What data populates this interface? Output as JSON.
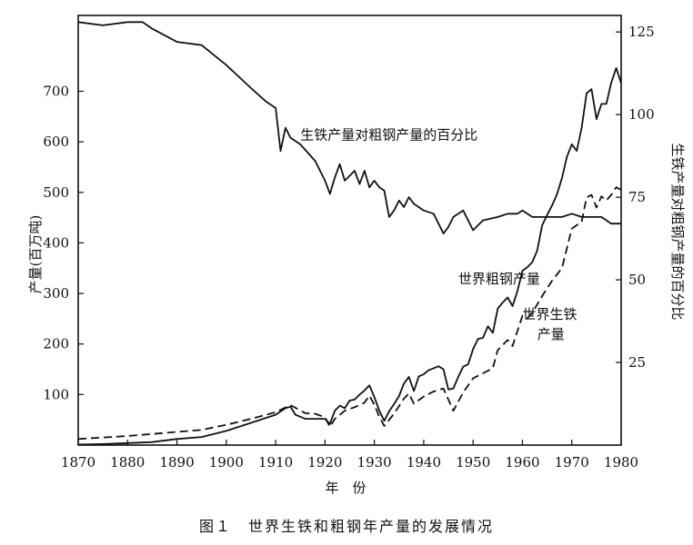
{
  "caption": "图１　世界生铁和粗钢年产量的发展情况",
  "chart_data": {
    "type": "line",
    "title": "图１　世界生铁和粗钢年产量的发展情况",
    "xlabel": "年　份",
    "ylabel_left": "产量(百万吨)",
    "ylabel_right": "生铁产量对粗钢产量的百分比",
    "xlim": [
      1870,
      1980
    ],
    "ylim_left": [
      0,
      850
    ],
    "ylim_right": [
      0,
      130
    ],
    "x_ticks": [
      "1870",
      "1880",
      "1890",
      "1900",
      "1910",
      "1920",
      "1930",
      "1940",
      "1950",
      "1960",
      "1970",
      "1980"
    ],
    "y_left_ticks": [
      "100",
      "200",
      "300",
      "400",
      "500",
      "600",
      "700"
    ],
    "y_right_ticks": [
      "25",
      "50",
      "75",
      "100",
      "125"
    ],
    "grid": false,
    "series": [
      {
        "name": "世界粗钢产量",
        "axis": "left",
        "style": "solid",
        "points": [
          [
            1870,
            1
          ],
          [
            1875,
            2
          ],
          [
            1880,
            4
          ],
          [
            1885,
            6
          ],
          [
            1890,
            12
          ],
          [
            1895,
            16
          ],
          [
            1900,
            28
          ],
          [
            1905,
            44
          ],
          [
            1910,
            60
          ],
          [
            1912,
            73
          ],
          [
            1913,
            76
          ],
          [
            1914,
            60
          ],
          [
            1916,
            52
          ],
          [
            1918,
            52
          ],
          [
            1920,
            52
          ],
          [
            1921,
            42
          ],
          [
            1922,
            68
          ],
          [
            1923,
            78
          ],
          [
            1924,
            73
          ],
          [
            1925,
            88
          ],
          [
            1926,
            90
          ],
          [
            1927,
            100
          ],
          [
            1928,
            108
          ],
          [
            1929,
            118
          ],
          [
            1930,
            95
          ],
          [
            1931,
            68
          ],
          [
            1932,
            48
          ],
          [
            1933,
            67
          ],
          [
            1934,
            81
          ],
          [
            1935,
            97
          ],
          [
            1936,
            122
          ],
          [
            1937,
            135
          ],
          [
            1938,
            107
          ],
          [
            1939,
            136
          ],
          [
            1940,
            140
          ],
          [
            1941,
            148
          ],
          [
            1942,
            152
          ],
          [
            1943,
            156
          ],
          [
            1944,
            150
          ],
          [
            1945,
            110
          ],
          [
            1946,
            112
          ],
          [
            1947,
            135
          ],
          [
            1948,
            155
          ],
          [
            1949,
            160
          ],
          [
            1950,
            190
          ],
          [
            1951,
            210
          ],
          [
            1952,
            212
          ],
          [
            1953,
            235
          ],
          [
            1954,
            222
          ],
          [
            1955,
            270
          ],
          [
            1956,
            282
          ],
          [
            1957,
            292
          ],
          [
            1958,
            275
          ],
          [
            1959,
            305
          ],
          [
            1960,
            345
          ],
          [
            1961,
            352
          ],
          [
            1962,
            362
          ],
          [
            1963,
            385
          ],
          [
            1964,
            435
          ],
          [
            1965,
            455
          ],
          [
            1966,
            474
          ],
          [
            1967,
            496
          ],
          [
            1968,
            528
          ],
          [
            1969,
            570
          ],
          [
            1970,
            595
          ],
          [
            1971,
            582
          ],
          [
            1972,
            628
          ],
          [
            1973,
            696
          ],
          [
            1974,
            704
          ],
          [
            1975,
            645
          ],
          [
            1976,
            675
          ],
          [
            1977,
            675
          ],
          [
            1978,
            717
          ],
          [
            1979,
            746
          ],
          [
            1980,
            716
          ]
        ]
      },
      {
        "name": "世界生铁产量",
        "axis": "left",
        "style": "dashed",
        "points": [
          [
            1870,
            12
          ],
          [
            1880,
            18
          ],
          [
            1890,
            26
          ],
          [
            1895,
            30
          ],
          [
            1900,
            40
          ],
          [
            1905,
            52
          ],
          [
            1910,
            65
          ],
          [
            1913,
            79
          ],
          [
            1916,
            63
          ],
          [
            1918,
            62
          ],
          [
            1920,
            55
          ],
          [
            1921,
            36
          ],
          [
            1922,
            52
          ],
          [
            1924,
            68
          ],
          [
            1926,
            75
          ],
          [
            1928,
            84
          ],
          [
            1929,
            98
          ],
          [
            1930,
            80
          ],
          [
            1931,
            56
          ],
          [
            1932,
            38
          ],
          [
            1934,
            62
          ],
          [
            1936,
            92
          ],
          [
            1937,
            102
          ],
          [
            1938,
            82
          ],
          [
            1940,
            96
          ],
          [
            1942,
            106
          ],
          [
            1944,
            112
          ],
          [
            1946,
            68
          ],
          [
            1948,
            104
          ],
          [
            1950,
            132
          ],
          [
            1952,
            142
          ],
          [
            1954,
            152
          ],
          [
            1955,
            188
          ],
          [
            1957,
            208
          ],
          [
            1958,
            196
          ],
          [
            1960,
            256
          ],
          [
            1961,
            251
          ],
          [
            1962,
            262
          ],
          [
            1964,
            295
          ],
          [
            1966,
            325
          ],
          [
            1968,
            350
          ],
          [
            1970,
            428
          ],
          [
            1972,
            442
          ],
          [
            1973,
            490
          ],
          [
            1974,
            495
          ],
          [
            1975,
            470
          ],
          [
            1976,
            492
          ],
          [
            1977,
            484
          ],
          [
            1978,
            495
          ],
          [
            1979,
            510
          ],
          [
            1980,
            505
          ]
        ]
      },
      {
        "name": "生铁产量对粗钢产量的百分比",
        "axis": "right",
        "style": "solid",
        "points": [
          [
            1870,
            128
          ],
          [
            1875,
            127
          ],
          [
            1880,
            128
          ],
          [
            1883,
            128
          ],
          [
            1885,
            126
          ],
          [
            1890,
            122
          ],
          [
            1895,
            121
          ],
          [
            1900,
            115
          ],
          [
            1905,
            108
          ],
          [
            1908,
            104
          ],
          [
            1910,
            102
          ],
          [
            1911,
            89
          ],
          [
            1912,
            96
          ],
          [
            1913,
            93
          ],
          [
            1915,
            91
          ],
          [
            1918,
            86
          ],
          [
            1920,
            80
          ],
          [
            1921,
            76
          ],
          [
            1922,
            81
          ],
          [
            1923,
            85
          ],
          [
            1924,
            80
          ],
          [
            1926,
            83
          ],
          [
            1927,
            79
          ],
          [
            1928,
            83
          ],
          [
            1929,
            78
          ],
          [
            1930,
            80
          ],
          [
            1931,
            78
          ],
          [
            1932,
            77
          ],
          [
            1933,
            69
          ],
          [
            1934,
            71
          ],
          [
            1935,
            74
          ],
          [
            1936,
            72
          ],
          [
            1937,
            75
          ],
          [
            1938,
            73
          ],
          [
            1940,
            71
          ],
          [
            1942,
            70
          ],
          [
            1944,
            64
          ],
          [
            1945,
            66
          ],
          [
            1946,
            69
          ],
          [
            1948,
            71
          ],
          [
            1950,
            65
          ],
          [
            1952,
            68
          ],
          [
            1955,
            69
          ],
          [
            1957,
            70
          ],
          [
            1959,
            70
          ],
          [
            1960,
            71
          ],
          [
            1962,
            69
          ],
          [
            1964,
            69
          ],
          [
            1966,
            69
          ],
          [
            1968,
            69
          ],
          [
            1970,
            70
          ],
          [
            1972,
            69
          ],
          [
            1974,
            69
          ],
          [
            1976,
            69
          ],
          [
            1978,
            67
          ],
          [
            1980,
            67
          ]
        ]
      }
    ],
    "annotations": [
      {
        "text": "生铁产量对粗钢产量的百分比",
        "x": 1915,
        "y_left": 605
      },
      {
        "text": "世界粗钢产量",
        "x": 1947,
        "y_left": 320
      },
      {
        "text": "世界生铁",
        "x": 1960,
        "y_left": 250
      },
      {
        "text": "产量",
        "x": 1963,
        "y_left": 210
      }
    ]
  }
}
